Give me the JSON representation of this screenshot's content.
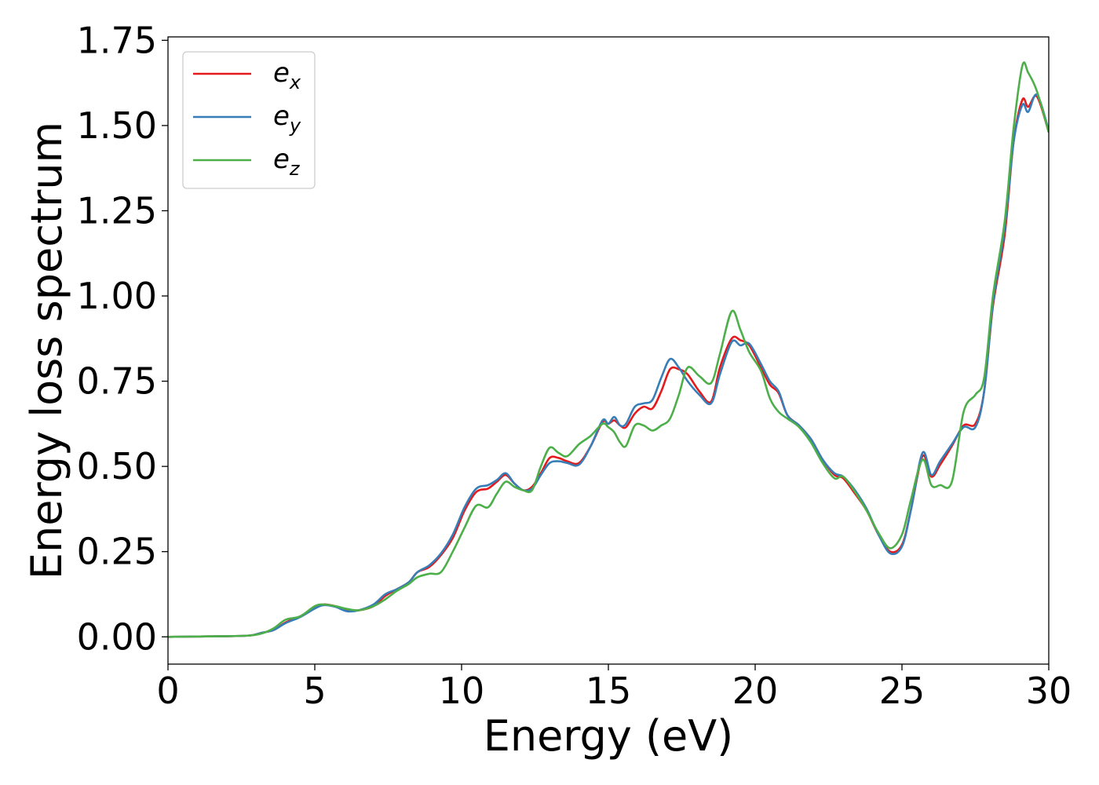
{
  "chart_data": {
    "type": "line",
    "xlabel": "Energy (eV)",
    "ylabel": "Energy loss spectrum",
    "xlim": [
      0,
      30
    ],
    "ylim": [
      -0.08,
      1.76
    ],
    "grid": false,
    "legend_position": "top-left",
    "x_ticks": [
      {
        "value": 0,
        "label": "0"
      },
      {
        "value": 5,
        "label": "5"
      },
      {
        "value": 10,
        "label": "10"
      },
      {
        "value": 15,
        "label": "15"
      },
      {
        "value": 20,
        "label": "20"
      },
      {
        "value": 25,
        "label": "25"
      },
      {
        "value": 30,
        "label": "30"
      }
    ],
    "y_ticks": [
      {
        "value": 0.0,
        "label": "0.00"
      },
      {
        "value": 0.25,
        "label": "0.25"
      },
      {
        "value": 0.5,
        "label": "0.50"
      },
      {
        "value": 0.75,
        "label": "0.75"
      },
      {
        "value": 1.0,
        "label": "1.00"
      },
      {
        "value": 1.25,
        "label": "1.25"
      },
      {
        "value": 1.5,
        "label": "1.50"
      },
      {
        "value": 1.75,
        "label": "1.75"
      }
    ],
    "series": [
      {
        "name": "e_x",
        "legend_base": "e",
        "legend_sub": "x",
        "color": "#e41a1c",
        "points": [
          [
            0,
            0
          ],
          [
            1,
            0.001
          ],
          [
            2,
            0.002
          ],
          [
            2.8,
            0.004
          ],
          [
            3.2,
            0.012
          ],
          [
            3.6,
            0.02
          ],
          [
            4,
            0.042
          ],
          [
            4.5,
            0.06
          ],
          [
            5,
            0.085
          ],
          [
            5.3,
            0.095
          ],
          [
            5.7,
            0.09
          ],
          [
            6.1,
            0.08
          ],
          [
            6.5,
            0.078
          ],
          [
            7,
            0.09
          ],
          [
            7.4,
            0.12
          ],
          [
            7.8,
            0.14
          ],
          [
            8.2,
            0.16
          ],
          [
            8.5,
            0.19
          ],
          [
            8.9,
            0.205
          ],
          [
            9.3,
            0.24
          ],
          [
            9.7,
            0.29
          ],
          [
            10.1,
            0.37
          ],
          [
            10.5,
            0.425
          ],
          [
            10.9,
            0.435
          ],
          [
            11.2,
            0.455
          ],
          [
            11.5,
            0.475
          ],
          [
            11.8,
            0.45
          ],
          [
            12.1,
            0.43
          ],
          [
            12.4,
            0.44
          ],
          [
            12.7,
            0.48
          ],
          [
            13,
            0.525
          ],
          [
            13.3,
            0.525
          ],
          [
            13.6,
            0.515
          ],
          [
            14,
            0.51
          ],
          [
            14.4,
            0.56
          ],
          [
            14.8,
            0.63
          ],
          [
            15,
            0.625
          ],
          [
            15.2,
            0.635
          ],
          [
            15.4,
            0.62
          ],
          [
            15.6,
            0.615
          ],
          [
            15.9,
            0.655
          ],
          [
            16.2,
            0.675
          ],
          [
            16.5,
            0.67
          ],
          [
            16.8,
            0.72
          ],
          [
            17.1,
            0.785
          ],
          [
            17.4,
            0.785
          ],
          [
            17.7,
            0.77
          ],
          [
            18.1,
            0.72
          ],
          [
            18.5,
            0.69
          ],
          [
            18.8,
            0.79
          ],
          [
            19.2,
            0.875
          ],
          [
            19.5,
            0.87
          ],
          [
            19.8,
            0.855
          ],
          [
            20.2,
            0.79
          ],
          [
            20.5,
            0.74
          ],
          [
            20.8,
            0.715
          ],
          [
            21.1,
            0.65
          ],
          [
            21.5,
            0.62
          ],
          [
            21.9,
            0.58
          ],
          [
            22.3,
            0.52
          ],
          [
            22.7,
            0.475
          ],
          [
            23,
            0.465
          ],
          [
            23.4,
            0.42
          ],
          [
            23.8,
            0.37
          ],
          [
            24.2,
            0.3
          ],
          [
            24.6,
            0.25
          ],
          [
            25,
            0.27
          ],
          [
            25.3,
            0.37
          ],
          [
            25.7,
            0.53
          ],
          [
            26,
            0.47
          ],
          [
            26.3,
            0.505
          ],
          [
            26.7,
            0.56
          ],
          [
            27.1,
            0.62
          ],
          [
            27.5,
            0.625
          ],
          [
            27.8,
            0.72
          ],
          [
            28.1,
            0.97
          ],
          [
            28.5,
            1.18
          ],
          [
            28.8,
            1.45
          ],
          [
            29.1,
            1.575
          ],
          [
            29.3,
            1.555
          ],
          [
            29.6,
            1.585
          ],
          [
            30,
            1.48
          ]
        ]
      },
      {
        "name": "e_y",
        "legend_base": "e",
        "legend_sub": "y",
        "color": "#377eb8",
        "points": [
          [
            0,
            0
          ],
          [
            1,
            0.001
          ],
          [
            2,
            0.002
          ],
          [
            2.8,
            0.004
          ],
          [
            3.2,
            0.012
          ],
          [
            3.6,
            0.02
          ],
          [
            4,
            0.04
          ],
          [
            4.5,
            0.058
          ],
          [
            5,
            0.083
          ],
          [
            5.3,
            0.093
          ],
          [
            5.7,
            0.088
          ],
          [
            6.1,
            0.075
          ],
          [
            6.5,
            0.078
          ],
          [
            7,
            0.095
          ],
          [
            7.4,
            0.125
          ],
          [
            7.8,
            0.14
          ],
          [
            8.2,
            0.16
          ],
          [
            8.5,
            0.19
          ],
          [
            8.9,
            0.21
          ],
          [
            9.3,
            0.245
          ],
          [
            9.7,
            0.3
          ],
          [
            10.1,
            0.38
          ],
          [
            10.5,
            0.435
          ],
          [
            10.9,
            0.445
          ],
          [
            11.2,
            0.46
          ],
          [
            11.5,
            0.48
          ],
          [
            11.8,
            0.45
          ],
          [
            12.1,
            0.43
          ],
          [
            12.4,
            0.435
          ],
          [
            12.7,
            0.475
          ],
          [
            13,
            0.51
          ],
          [
            13.3,
            0.515
          ],
          [
            13.6,
            0.51
          ],
          [
            14,
            0.505
          ],
          [
            14.4,
            0.56
          ],
          [
            14.8,
            0.635
          ],
          [
            15,
            0.625
          ],
          [
            15.2,
            0.645
          ],
          [
            15.4,
            0.62
          ],
          [
            15.6,
            0.625
          ],
          [
            15.9,
            0.675
          ],
          [
            16.2,
            0.685
          ],
          [
            16.5,
            0.695
          ],
          [
            16.8,
            0.76
          ],
          [
            17.1,
            0.815
          ],
          [
            17.4,
            0.79
          ],
          [
            17.7,
            0.75
          ],
          [
            18.1,
            0.71
          ],
          [
            18.5,
            0.685
          ],
          [
            18.8,
            0.77
          ],
          [
            19.2,
            0.865
          ],
          [
            19.5,
            0.855
          ],
          [
            19.8,
            0.86
          ],
          [
            20.2,
            0.8
          ],
          [
            20.5,
            0.75
          ],
          [
            20.8,
            0.72
          ],
          [
            21.1,
            0.65
          ],
          [
            21.5,
            0.62
          ],
          [
            21.9,
            0.58
          ],
          [
            22.3,
            0.52
          ],
          [
            22.7,
            0.48
          ],
          [
            23,
            0.47
          ],
          [
            23.4,
            0.43
          ],
          [
            23.8,
            0.375
          ],
          [
            24.2,
            0.3
          ],
          [
            24.6,
            0.245
          ],
          [
            25,
            0.265
          ],
          [
            25.3,
            0.37
          ],
          [
            25.7,
            0.54
          ],
          [
            26,
            0.475
          ],
          [
            26.3,
            0.515
          ],
          [
            26.7,
            0.565
          ],
          [
            27.1,
            0.615
          ],
          [
            27.5,
            0.615
          ],
          [
            27.8,
            0.72
          ],
          [
            28.1,
            0.98
          ],
          [
            28.5,
            1.2
          ],
          [
            28.8,
            1.45
          ],
          [
            29.1,
            1.56
          ],
          [
            29.3,
            1.54
          ],
          [
            29.6,
            1.59
          ],
          [
            30,
            1.485
          ]
        ]
      },
      {
        "name": "e_z",
        "legend_base": "e",
        "legend_sub": "z",
        "color": "#4daf4a",
        "points": [
          [
            0,
            0
          ],
          [
            1,
            0.001
          ],
          [
            2,
            0.002
          ],
          [
            2.8,
            0.004
          ],
          [
            3.2,
            0.01
          ],
          [
            3.6,
            0.025
          ],
          [
            4,
            0.05
          ],
          [
            4.5,
            0.06
          ],
          [
            5,
            0.09
          ],
          [
            5.3,
            0.095
          ],
          [
            5.7,
            0.09
          ],
          [
            6.1,
            0.082
          ],
          [
            6.5,
            0.078
          ],
          [
            7,
            0.09
          ],
          [
            7.4,
            0.11
          ],
          [
            7.8,
            0.135
          ],
          [
            8.2,
            0.155
          ],
          [
            8.5,
            0.175
          ],
          [
            8.9,
            0.185
          ],
          [
            9.3,
            0.19
          ],
          [
            9.7,
            0.25
          ],
          [
            10.1,
            0.32
          ],
          [
            10.5,
            0.385
          ],
          [
            10.9,
            0.38
          ],
          [
            11.2,
            0.42
          ],
          [
            11.5,
            0.455
          ],
          [
            11.8,
            0.44
          ],
          [
            12.1,
            0.43
          ],
          [
            12.4,
            0.43
          ],
          [
            12.7,
            0.5
          ],
          [
            13,
            0.555
          ],
          [
            13.3,
            0.54
          ],
          [
            13.6,
            0.53
          ],
          [
            14,
            0.565
          ],
          [
            14.4,
            0.59
          ],
          [
            14.8,
            0.625
          ],
          [
            15,
            0.615
          ],
          [
            15.2,
            0.6
          ],
          [
            15.4,
            0.57
          ],
          [
            15.6,
            0.56
          ],
          [
            15.9,
            0.62
          ],
          [
            16.2,
            0.62
          ],
          [
            16.5,
            0.605
          ],
          [
            16.8,
            0.62
          ],
          [
            17.1,
            0.64
          ],
          [
            17.4,
            0.71
          ],
          [
            17.7,
            0.79
          ],
          [
            18.1,
            0.765
          ],
          [
            18.5,
            0.745
          ],
          [
            18.8,
            0.83
          ],
          [
            19.2,
            0.955
          ],
          [
            19.5,
            0.9
          ],
          [
            19.8,
            0.835
          ],
          [
            20.2,
            0.78
          ],
          [
            20.5,
            0.7
          ],
          [
            20.8,
            0.66
          ],
          [
            21.1,
            0.64
          ],
          [
            21.5,
            0.615
          ],
          [
            21.9,
            0.57
          ],
          [
            22.3,
            0.51
          ],
          [
            22.7,
            0.465
          ],
          [
            23,
            0.47
          ],
          [
            23.4,
            0.425
          ],
          [
            23.8,
            0.37
          ],
          [
            24.2,
            0.305
          ],
          [
            24.6,
            0.26
          ],
          [
            25,
            0.3
          ],
          [
            25.3,
            0.4
          ],
          [
            25.7,
            0.52
          ],
          [
            26,
            0.445
          ],
          [
            26.3,
            0.445
          ],
          [
            26.7,
            0.455
          ],
          [
            27.1,
            0.66
          ],
          [
            27.5,
            0.71
          ],
          [
            27.8,
            0.76
          ],
          [
            28.1,
            1.0
          ],
          [
            28.5,
            1.22
          ],
          [
            28.8,
            1.49
          ],
          [
            29.1,
            1.675
          ],
          [
            29.3,
            1.655
          ],
          [
            29.6,
            1.6
          ],
          [
            30,
            1.48
          ]
        ]
      }
    ]
  }
}
